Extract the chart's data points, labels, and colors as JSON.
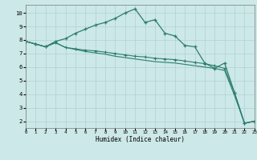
{
  "title": "",
  "xlabel": "Humidex (Indice chaleur)",
  "background_color": "#cce8e8",
  "grid_color": "#aacccc",
  "line_color": "#2e7d6e",
  "xlim": [
    0,
    23
  ],
  "ylim": [
    1.5,
    10.6
  ],
  "xticks": [
    0,
    1,
    2,
    3,
    4,
    5,
    6,
    7,
    8,
    9,
    10,
    11,
    12,
    13,
    14,
    15,
    16,
    17,
    18,
    19,
    20,
    21,
    22,
    23
  ],
  "yticks": [
    2,
    3,
    4,
    5,
    6,
    7,
    8,
    9,
    10
  ],
  "line1_x": [
    0,
    1,
    2,
    3,
    4,
    5,
    6,
    7,
    8,
    9,
    10,
    11,
    12,
    13,
    14,
    15,
    16,
    17,
    18,
    19,
    20,
    21,
    22,
    23
  ],
  "line1_y": [
    7.9,
    7.7,
    7.5,
    7.9,
    8.1,
    8.5,
    8.8,
    9.1,
    9.3,
    9.6,
    10.0,
    10.3,
    9.3,
    9.5,
    8.5,
    8.3,
    7.6,
    7.5,
    6.3,
    5.9,
    6.3,
    4.1,
    1.85,
    2.0
  ],
  "line2_x": [
    0,
    1,
    2,
    3,
    4,
    5,
    6,
    7,
    8,
    9,
    10,
    11,
    12,
    13,
    14,
    15,
    16,
    17,
    18,
    19,
    20,
    21,
    22,
    23
  ],
  "line2_y": [
    7.9,
    7.7,
    7.5,
    7.8,
    7.45,
    7.35,
    7.25,
    7.2,
    7.1,
    7.0,
    6.9,
    6.8,
    6.75,
    6.65,
    6.6,
    6.55,
    6.45,
    6.35,
    6.25,
    6.1,
    5.9,
    4.1,
    1.85,
    2.0
  ],
  "line3_x": [
    0,
    1,
    2,
    3,
    4,
    5,
    6,
    7,
    8,
    9,
    10,
    11,
    12,
    13,
    14,
    15,
    16,
    17,
    18,
    19,
    20,
    21,
    22,
    23
  ],
  "line3_y": [
    7.9,
    7.7,
    7.5,
    7.8,
    7.45,
    7.3,
    7.15,
    7.05,
    6.95,
    6.8,
    6.7,
    6.6,
    6.5,
    6.4,
    6.35,
    6.3,
    6.2,
    6.1,
    6.0,
    5.9,
    5.75,
    3.9,
    1.85,
    2.0
  ]
}
